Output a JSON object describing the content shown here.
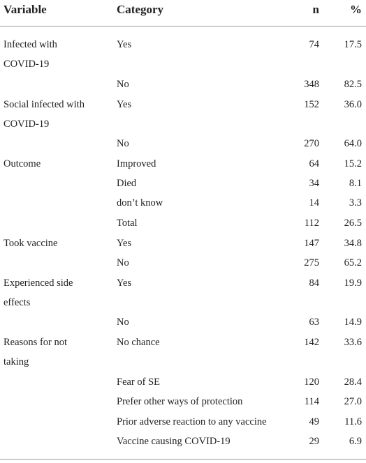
{
  "header": {
    "variable": "Variable",
    "category": "Category",
    "n": "n",
    "pct": "%"
  },
  "rows": [
    {
      "variable": [
        "Infected with",
        "COVID-19"
      ],
      "category": "Yes",
      "n": "74",
      "pct": "17.5"
    },
    {
      "variable": [],
      "category": "No",
      "n": "348",
      "pct": "82.5"
    },
    {
      "variable": [
        "Social infected with",
        "COVID-19"
      ],
      "category": "Yes",
      "n": "152",
      "pct": "36.0"
    },
    {
      "variable": [],
      "category": "No",
      "n": "270",
      "pct": "64.0"
    },
    {
      "variable": [
        "Outcome"
      ],
      "category": "Improved",
      "n": "64",
      "pct": "15.2"
    },
    {
      "variable": [],
      "category": "Died",
      "n": "34",
      "pct": "8.1"
    },
    {
      "variable": [],
      "category": "don’t know",
      "n": "14",
      "pct": "3.3"
    },
    {
      "variable": [],
      "category": "Total",
      "n": "112",
      "pct": "26.5"
    },
    {
      "variable": [
        "Took vaccine"
      ],
      "category": "Yes",
      "n": "147",
      "pct": "34.8"
    },
    {
      "variable": [],
      "category": "No",
      "n": "275",
      "pct": "65.2"
    },
    {
      "variable": [
        "Experienced side",
        "effects"
      ],
      "category": "Yes",
      "n": "84",
      "pct": "19.9"
    },
    {
      "variable": [],
      "category": "No",
      "n": "63",
      "pct": "14.9"
    },
    {
      "variable": [
        "Reasons for not",
        "taking"
      ],
      "category": "No chance",
      "n": "142",
      "pct": "33.6"
    },
    {
      "variable": [],
      "category": "Fear of SE",
      "n": "120",
      "pct": "28.4"
    },
    {
      "variable": [],
      "category": "Prefer other ways of protection",
      "n": "114",
      "pct": "27.0"
    },
    {
      "variable": [],
      "category": "Prior adverse reaction to any vaccine",
      "n": "49",
      "pct": "11.6"
    },
    {
      "variable": [],
      "category": "Vaccine causing COVID-19",
      "n": "29",
      "pct": "6.9"
    }
  ]
}
